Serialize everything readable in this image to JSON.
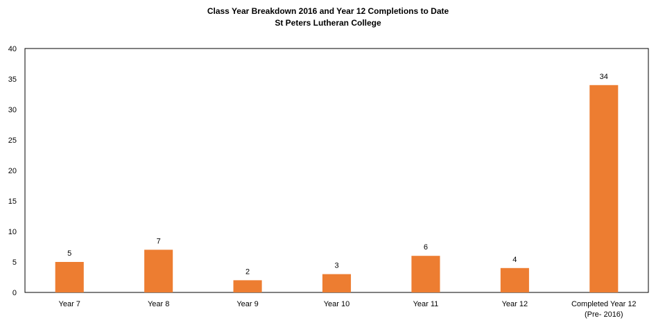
{
  "chart_data": {
    "type": "bar",
    "title": "Class Year Breakdown 2016 and Year 12 Completions to Date",
    "subtitle": "St Peters Lutheran College",
    "xlabel": "",
    "ylabel": "",
    "categories": [
      [
        "Year 7"
      ],
      [
        "Year 8"
      ],
      [
        "Year 9"
      ],
      [
        "Year 10"
      ],
      [
        "Year 11"
      ],
      [
        "Year 12"
      ],
      [
        "Completed Year 12",
        "(Pre- 2016)"
      ]
    ],
    "values": [
      5,
      7,
      2,
      3,
      6,
      4,
      34
    ],
    "ylim": [
      0,
      40
    ],
    "yticks": [
      0,
      5,
      10,
      15,
      20,
      25,
      30,
      35,
      40
    ],
    "grid": false,
    "legend": "none",
    "bar_color": "#ED7D31",
    "frame_color": "#000000"
  }
}
